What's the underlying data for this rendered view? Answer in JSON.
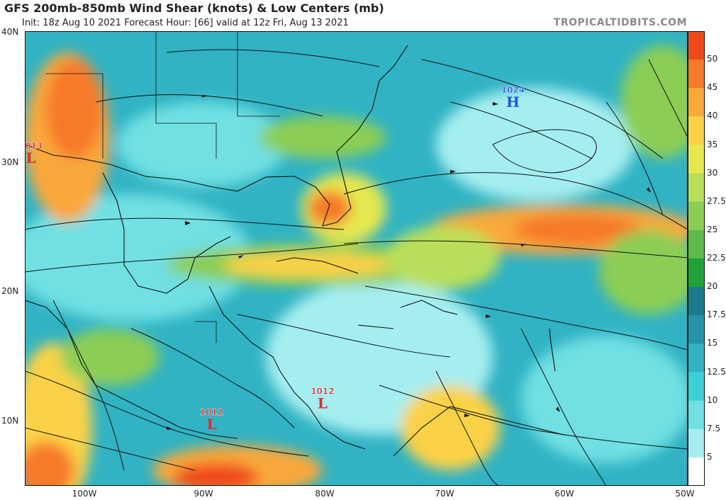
{
  "header": {
    "title": "GFS 200mb-850mb Wind Shear (knots) & Low Centers (mb)",
    "subtitle": "Init: 18z Aug 10 2021   Forecast Hour: [66]   valid at 12z Fri, Aug 13 2021",
    "brand": "TROPICALTIDBITS.COM"
  },
  "axes": {
    "lat_labels": [
      "40N",
      "30N",
      "20N",
      "10N"
    ],
    "lon_labels": [
      "100W",
      "90W",
      "80W",
      "70W",
      "60W",
      "50W"
    ]
  },
  "colorbar": {
    "labels": [
      "50",
      "45",
      "40",
      "35",
      "30",
      "27.5",
      "25",
      "22.5",
      "20",
      "17.5",
      "15",
      "12.5",
      "10",
      "7.5",
      "5"
    ],
    "colors": [
      "#f04a1c",
      "#f7792a",
      "#f9a83a",
      "#fbd247",
      "#e6e84f",
      "#b9df5a",
      "#8cce55",
      "#5bbb4a",
      "#21a13b",
      "#1a7b8a",
      "#2594a9",
      "#31b3c3",
      "#3ecfd6",
      "#6fe0e3",
      "#a5eef0",
      "#ffffff"
    ]
  },
  "pressure_centers": [
    {
      "value": "1024",
      "symbol": "H",
      "type": "high",
      "color": "#2255dd",
      "lat": 34.5,
      "lon": -64.5
    },
    {
      "value": "1013",
      "symbol": "L",
      "type": "low",
      "color": "#d83030",
      "lat": 30.2,
      "lon": -104.5
    },
    {
      "value": "1012",
      "symbol": "L",
      "type": "low",
      "color": "#d83030",
      "lat": 11.3,
      "lon": -80.3
    },
    {
      "value": "1012",
      "symbol": "L",
      "type": "low",
      "color": "#d83030",
      "lat": 9.7,
      "lon": -89.5
    }
  ]
}
